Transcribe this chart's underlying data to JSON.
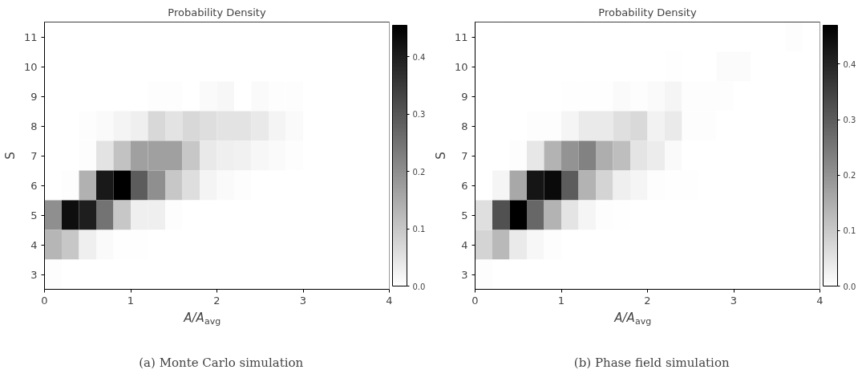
{
  "chart_data": [
    {
      "type": "heatmap",
      "title": "Probability Density",
      "xlabel": "A/A$_{avg}$",
      "ylabel": "S",
      "annotations": [
        "(a) Monte Carlo simulation"
      ],
      "x": [
        0.1,
        0.3,
        0.5,
        0.7,
        0.9,
        1.1,
        1.3,
        1.5,
        1.7,
        1.9,
        2.1,
        2.3,
        2.5,
        2.7,
        2.9,
        3.1,
        3.3,
        3.5,
        3.7,
        3.9
      ],
      "xlim": [
        0,
        4
      ],
      "xticks": [
        0,
        1,
        2,
        3,
        4
      ],
      "y_categories": [
        "11",
        "10",
        "9",
        "8",
        "7",
        "6",
        "5",
        "4",
        "3"
      ],
      "clim": [
        0,
        0.455
      ],
      "cticks": [
        {
          "value": 0,
          "label": "0.0"
        },
        0.1,
        0.2,
        0.3,
        0.4
      ],
      "cells": [
        [
          0,
          0,
          0,
          0,
          0,
          0,
          0,
          0,
          0,
          0,
          0,
          0,
          0,
          0,
          0,
          0,
          0,
          0,
          0,
          0
        ],
        [
          0,
          0,
          0,
          0,
          0,
          0,
          0,
          0,
          0,
          0,
          0,
          0,
          0,
          0,
          0,
          0,
          0,
          0,
          0,
          0
        ],
        [
          0,
          0,
          0,
          0,
          0,
          0,
          0.005,
          0.005,
          0,
          0.01,
          0.015,
          0,
          0.01,
          0.005,
          0.005,
          0,
          0,
          0,
          0,
          0
        ],
        [
          0,
          0,
          0.005,
          0.01,
          0.02,
          0.03,
          0.07,
          0.05,
          0.07,
          0.06,
          0.05,
          0.05,
          0.04,
          0.02,
          0.01,
          0,
          0,
          0,
          0,
          0
        ],
        [
          0,
          0,
          0.005,
          0.05,
          0.11,
          0.17,
          0.17,
          0.17,
          0.1,
          0.04,
          0.03,
          0.025,
          0.015,
          0.01,
          0.005,
          0,
          0,
          0,
          0,
          0
        ],
        [
          0,
          0.005,
          0.14,
          0.41,
          0.455,
          0.29,
          0.2,
          0.1,
          0.06,
          0.02,
          0.01,
          0.005,
          0,
          0,
          0,
          0,
          0,
          0,
          0,
          0
        ],
        [
          0.2,
          0.43,
          0.4,
          0.25,
          0.1,
          0.03,
          0.03,
          0.005,
          0,
          0,
          0,
          0,
          0,
          0,
          0,
          0,
          0,
          0,
          0,
          0
        ],
        [
          0.13,
          0.1,
          0.03,
          0.01,
          0.003,
          0.003,
          0,
          0,
          0,
          0,
          0,
          0,
          0,
          0,
          0,
          0,
          0,
          0,
          0,
          0
        ],
        [
          0.005,
          0,
          0,
          0,
          0,
          0,
          0,
          0,
          0,
          0,
          0,
          0,
          0,
          0,
          0,
          0,
          0,
          0,
          0,
          0
        ]
      ]
    },
    {
      "type": "heatmap",
      "title": "Probability Density",
      "xlabel": "A/A$_{avg}$",
      "ylabel": "S",
      "annotations": [
        "(b) Phase field simulation"
      ],
      "x": [
        0.1,
        0.3,
        0.5,
        0.7,
        0.9,
        1.1,
        1.3,
        1.5,
        1.7,
        1.9,
        2.1,
        2.3,
        2.5,
        2.7,
        2.9,
        3.1,
        3.3,
        3.5,
        3.7,
        3.9
      ],
      "xlim": [
        0,
        4
      ],
      "xticks": [
        0,
        1,
        2,
        3,
        4
      ],
      "y_categories": [
        "11",
        "10",
        "9",
        "8",
        "7",
        "6",
        "5",
        "4",
        "3"
      ],
      "clim": [
        0,
        0.47
      ],
      "cticks": [
        {
          "value": 0,
          "label": "0.0"
        },
        0.1,
        0.2,
        0.3,
        0.4
      ],
      "cells": [
        [
          0,
          0,
          0,
          0,
          0,
          0,
          0,
          0,
          0,
          0,
          0,
          0,
          0,
          0,
          0,
          0,
          0,
          0,
          0.005,
          0
        ],
        [
          0,
          0,
          0,
          0,
          0,
          0,
          0,
          0,
          0,
          0,
          0,
          0.003,
          0,
          0,
          0.008,
          0.008,
          0,
          0,
          0,
          0
        ],
        [
          0,
          0,
          0,
          0,
          0,
          0.002,
          0.002,
          0.002,
          0.01,
          0.005,
          0.01,
          0.02,
          0.005,
          0.005,
          0.005,
          0,
          0,
          0,
          0,
          0
        ],
        [
          0,
          0,
          0,
          0.005,
          0.005,
          0.02,
          0.04,
          0.04,
          0.06,
          0.07,
          0.025,
          0.04,
          0.005,
          0.005,
          0,
          0,
          0,
          0,
          0,
          0
        ],
        [
          0,
          0,
          0.005,
          0.045,
          0.14,
          0.2,
          0.23,
          0.15,
          0.12,
          0.05,
          0.035,
          0.01,
          0,
          0,
          0,
          0,
          0,
          0,
          0,
          0
        ],
        [
          0,
          0.02,
          0.16,
          0.43,
          0.45,
          0.3,
          0.14,
          0.08,
          0.03,
          0.02,
          0.005,
          0.003,
          0.003,
          0,
          0,
          0,
          0,
          0,
          0,
          0
        ],
        [
          0.06,
          0.32,
          0.47,
          0.28,
          0.14,
          0.05,
          0.02,
          0.005,
          0.003,
          0,
          0,
          0,
          0,
          0,
          0,
          0,
          0,
          0,
          0,
          0
        ],
        [
          0.08,
          0.13,
          0.04,
          0.015,
          0.005,
          0,
          0,
          0,
          0,
          0,
          0,
          0,
          0,
          0,
          0,
          0,
          0,
          0,
          0,
          0
        ],
        [
          0.005,
          0,
          0,
          0,
          0,
          0,
          0,
          0,
          0,
          0,
          0,
          0,
          0,
          0,
          0,
          0,
          0,
          0,
          0,
          0
        ]
      ]
    }
  ]
}
